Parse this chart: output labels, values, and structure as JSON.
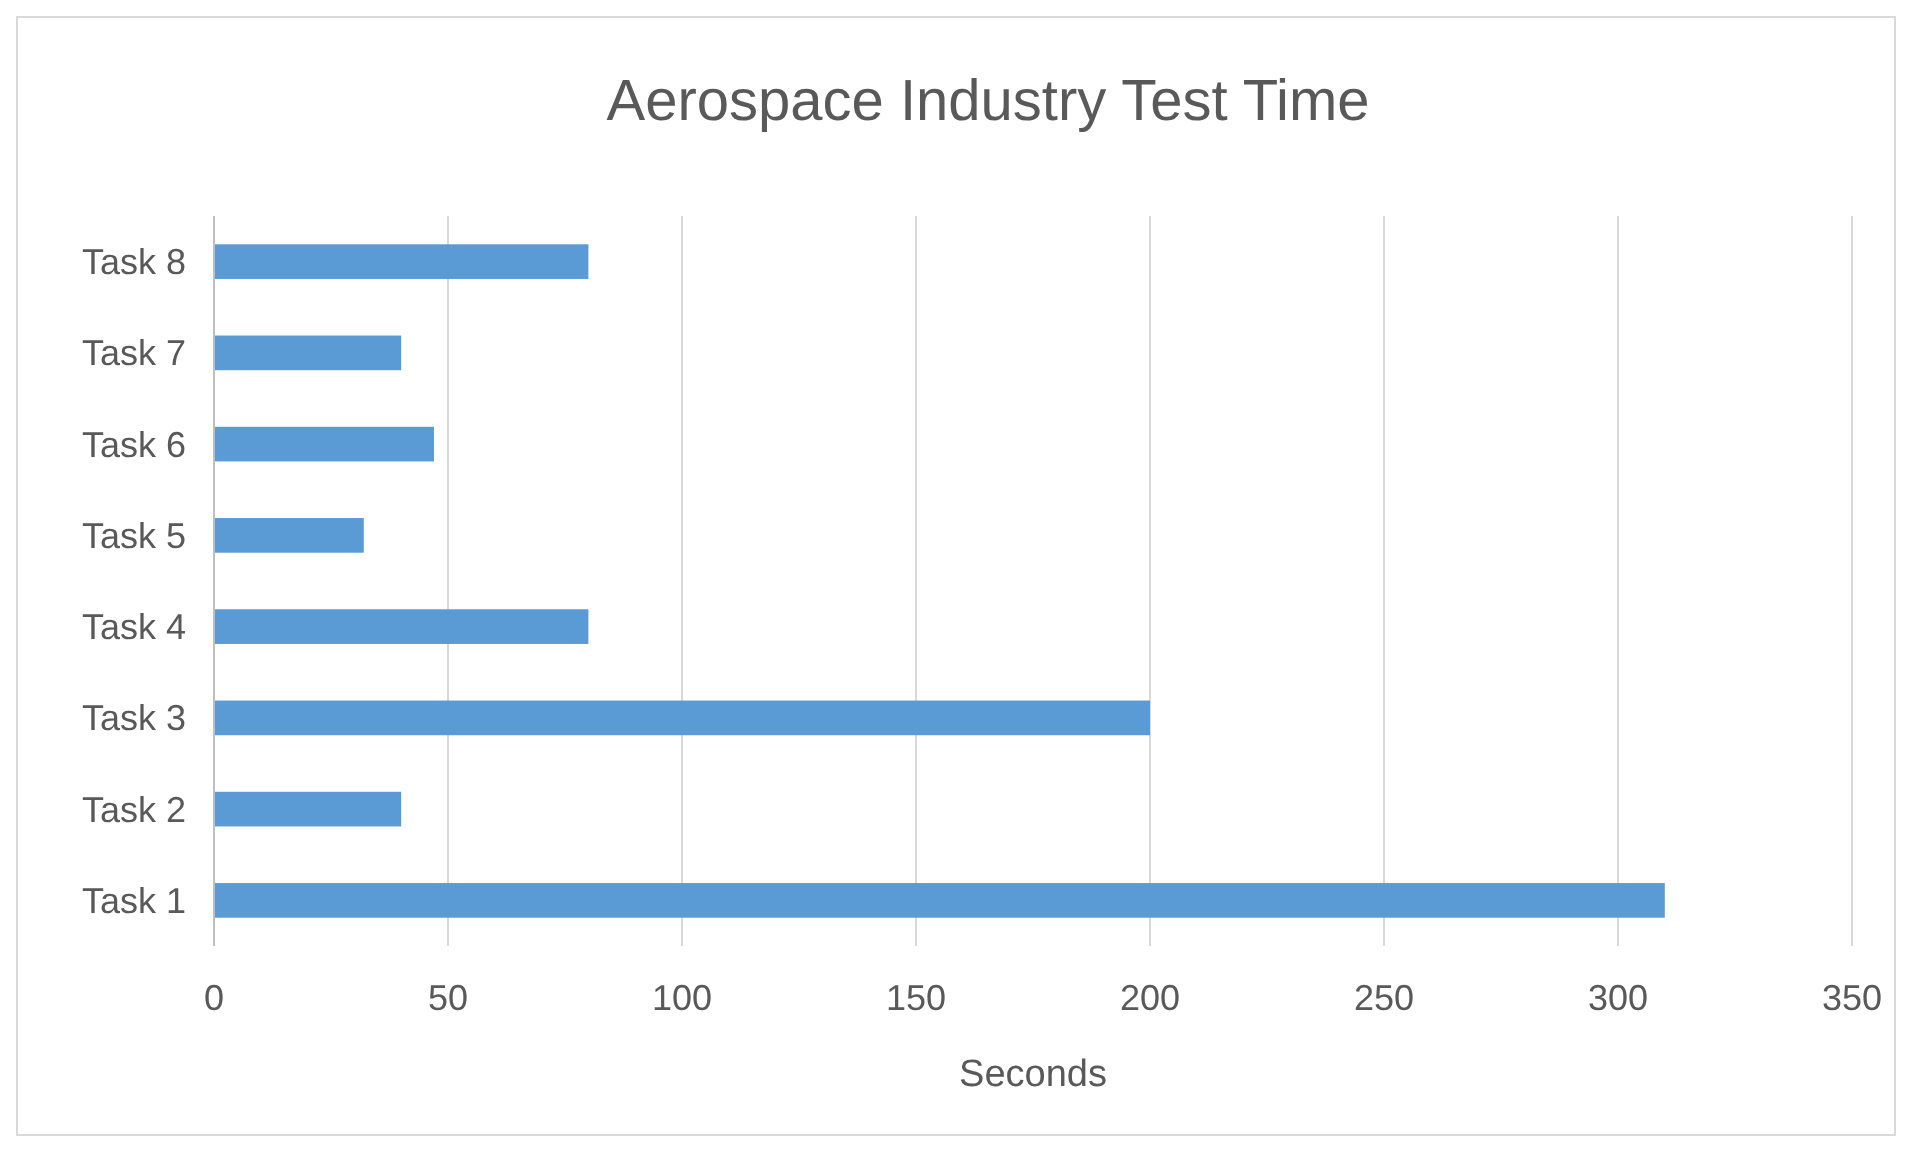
{
  "chart_data": {
    "type": "bar",
    "orientation": "horizontal",
    "title": "Aerospace Industry Test Time",
    "xlabel": "Seconds",
    "categories": [
      "Task 8",
      "Task 7",
      "Task 6",
      "Task 5",
      "Task 4",
      "Task 3",
      "Task 2",
      "Task 1"
    ],
    "values": [
      80,
      40,
      47,
      32,
      80,
      200,
      40,
      310
    ],
    "color": "#5b9bd5",
    "xlim": [
      0,
      350
    ],
    "xticks": [
      0,
      50,
      100,
      150,
      200,
      250,
      300,
      350
    ],
    "grid": "x"
  }
}
